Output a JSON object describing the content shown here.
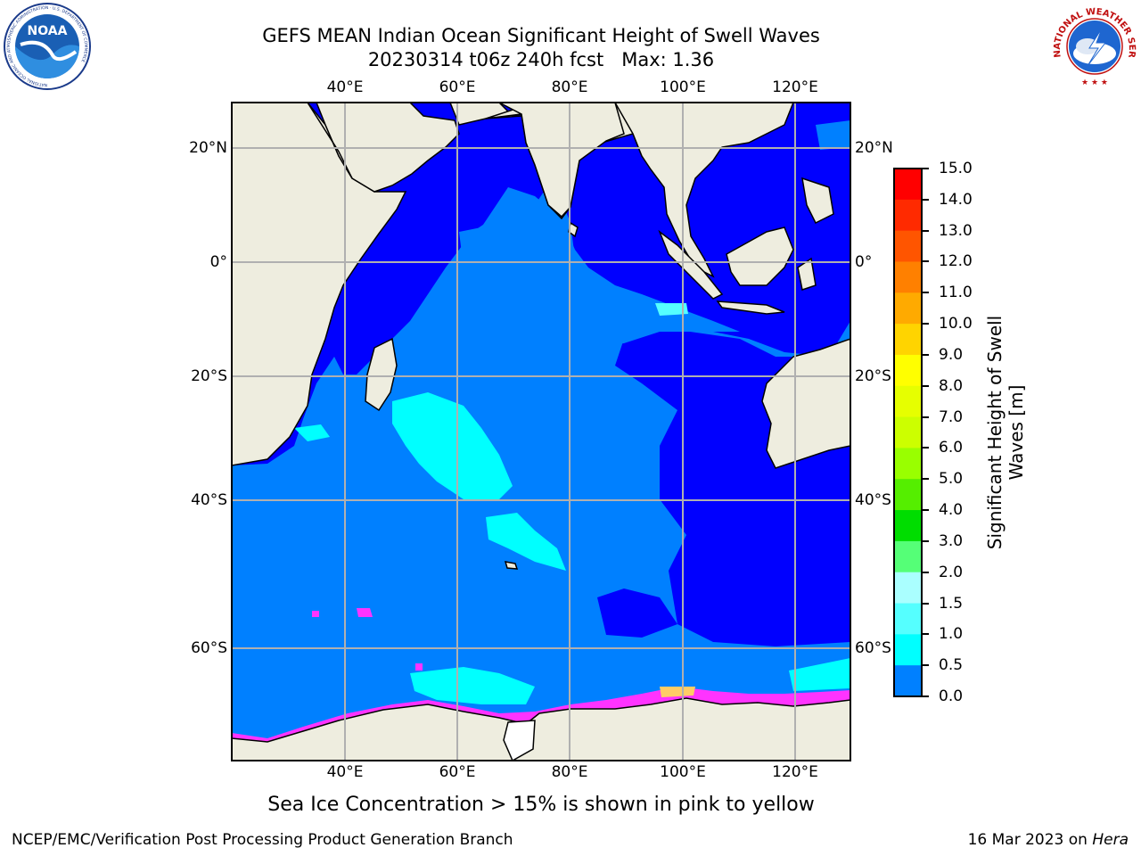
{
  "header": {
    "title_line1": "GEFS MEAN Indian Ocean Significant Height of Swell Waves",
    "title_line2": "20230314 t06z 240h fcst   Max: 1.36"
  },
  "logos": {
    "left": "NOAA",
    "left_ring": "NATIONAL OCEANIC AND ATMOSPHERIC ADMINISTRATION · U.S. DEPARTMENT OF COMMERCE",
    "right_ring": "NATIONAL WEATHER SERVICE"
  },
  "map": {
    "lon_ticks_top": [
      "40°E",
      "60°E",
      "80°E",
      "100°E",
      "120°E"
    ],
    "lon_ticks_bottom": [
      "40°E",
      "60°E",
      "80°E",
      "100°E",
      "120°E"
    ],
    "lat_ticks_left": [
      "20°N",
      "0°",
      "20°S",
      "40°S",
      "60°S"
    ],
    "lat_ticks_right": [
      "20°N",
      "0°",
      "20°S",
      "40°S",
      "60°S"
    ],
    "colors": {
      "land": "#eeeddf",
      "swell_0_05": "#0000ff",
      "swell_05_10": "#0080ff",
      "swell_10_15": "#00ffff",
      "swell_15_20": "#55ffff",
      "ice": "#ff33ff",
      "grid": "#b0b0b0"
    }
  },
  "colorbar": {
    "title_line1": "Significant Height of Swell",
    "title_line2": "Waves [m]",
    "labels": [
      "15.0",
      "14.0",
      "13.0",
      "12.0",
      "11.0",
      "10.0",
      "9.0",
      "8.0",
      "7.0",
      "6.0",
      "5.0",
      "4.0",
      "3.0",
      "2.0",
      "1.5",
      "1.0",
      "0.5",
      "0.0"
    ],
    "colors": [
      "#ff0000",
      "#ff2a00",
      "#ff5500",
      "#ff8000",
      "#ffaa00",
      "#ffd400",
      "#ffff00",
      "#e6ff00",
      "#ccff00",
      "#99ff00",
      "#55ee00",
      "#00dd00",
      "#55ff77",
      "#aaffff",
      "#55ffff",
      "#00ffff",
      "#0080ff",
      "#0000ff"
    ]
  },
  "caption": "Sea Ice Concentration > 15% is shown in pink to yellow",
  "footer": {
    "left": "NCEP/EMC/Verification Post Processing Product Generation Branch",
    "right_prefix": "16 Mar 2023 on ",
    "right_host": "Hera"
  }
}
